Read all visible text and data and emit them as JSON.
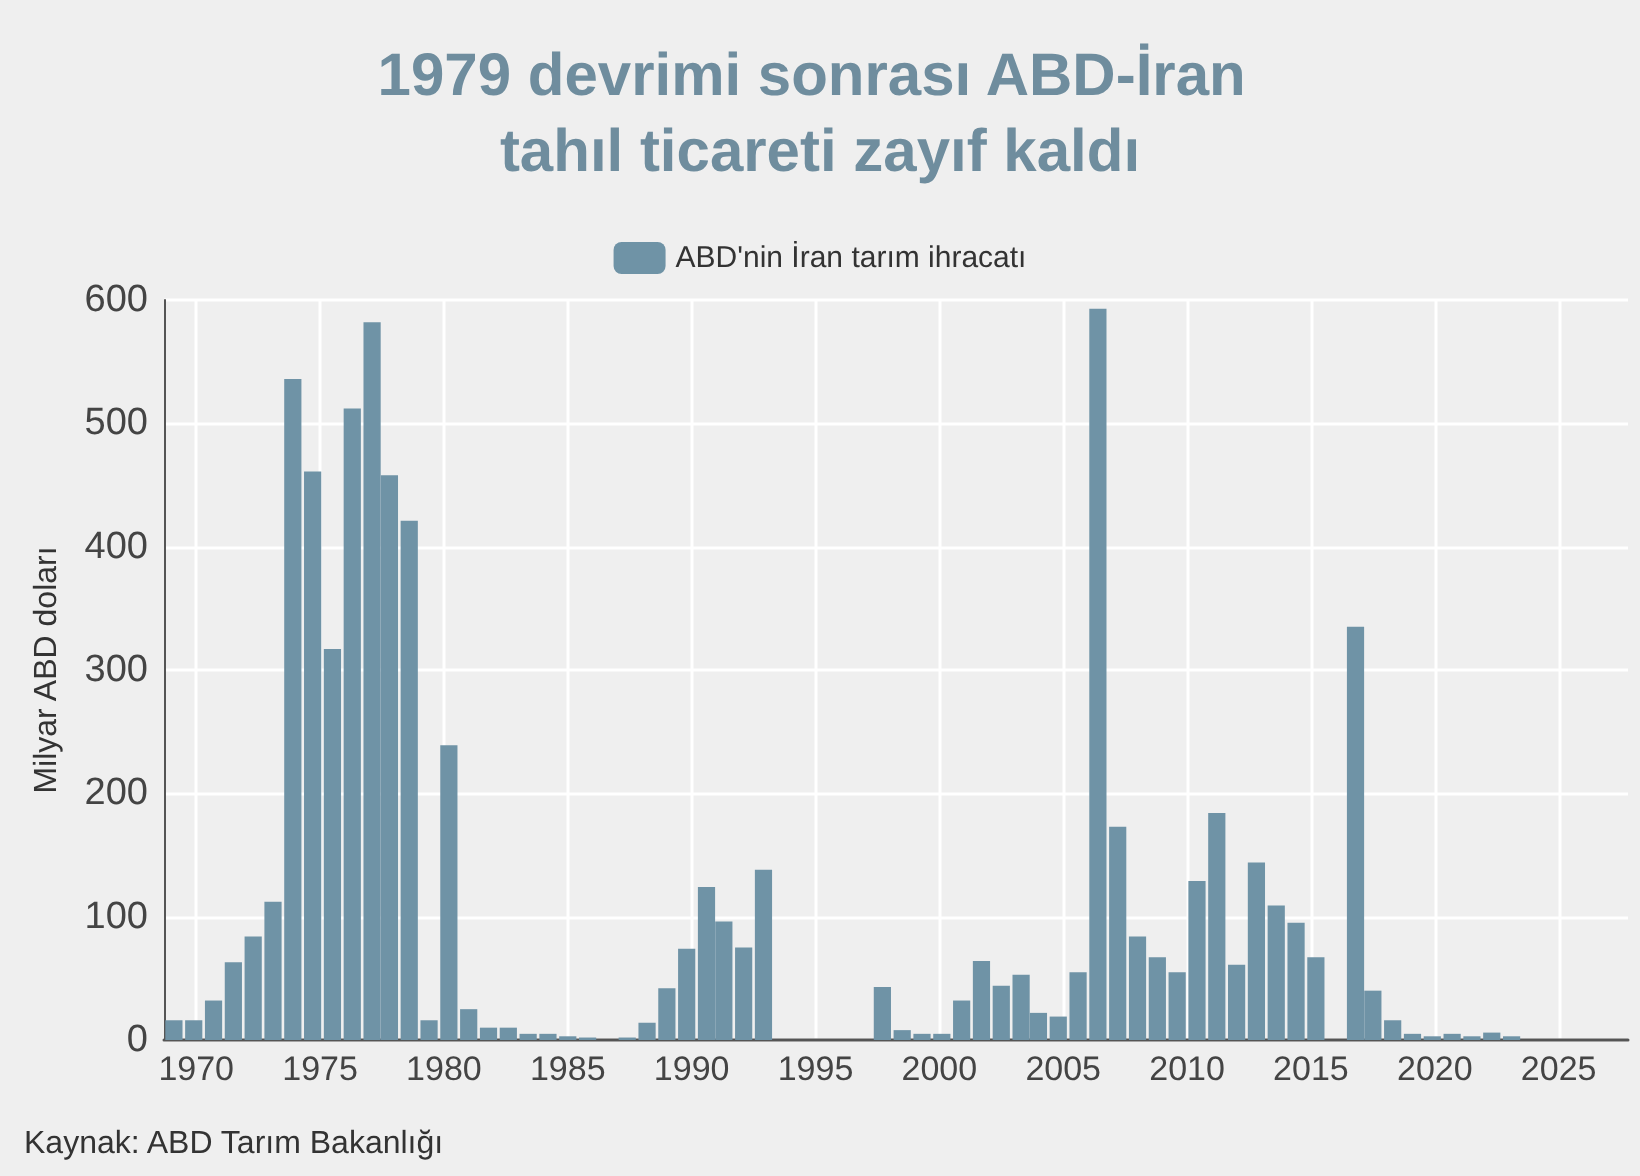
{
  "chart_data": {
    "type": "bar",
    "title": "1979 devrimi sonrası ABD-İran tahıl ticareti zayıf kaldı",
    "ylabel": "Milyar ABD doları",
    "annotations": [
      "Kaynak: ABD Tarım Bakanlığı"
    ],
    "x": [
      1969.1,
      1969.9,
      1970.7,
      1971.5,
      1972.3,
      1973.1,
      1973.9,
      1974.7,
      1975.5,
      1976.3,
      1977.1,
      1977.8,
      1978.6,
      1979.4,
      1980.2,
      1981.0,
      1981.8,
      1982.6,
      1983.4,
      1984.2,
      1985.0,
      1985.8,
      1987.4,
      1988.2,
      1989.0,
      1989.8,
      1990.6,
      1991.3,
      1992.1,
      1992.9,
      1997.7,
      1998.5,
      1999.3,
      2000.1,
      2000.9,
      2001.7,
      2002.5,
      2003.3,
      2004.0,
      2004.8,
      2005.6,
      2006.4,
      2007.2,
      2008.0,
      2008.8,
      2009.6,
      2010.4,
      2011.2,
      2012.0,
      2012.8,
      2013.6,
      2014.4,
      2015.2,
      2016.8,
      2017.5,
      2018.3,
      2019.1,
      2019.9,
      2020.7,
      2021.5,
      2022.3,
      2023.1
    ],
    "series": [
      {
        "name": "ABD'nin İran tarım ihracatı",
        "color": "#6f93a6",
        "values": [
          16,
          16,
          32,
          63,
          84,
          112,
          536,
          461,
          317,
          512,
          582,
          458,
          421,
          16,
          239,
          25,
          10,
          10,
          5,
          5,
          3,
          2,
          2,
          14,
          42,
          74,
          124,
          96,
          75,
          138,
          43,
          8,
          5,
          5,
          32,
          64,
          44,
          53,
          22,
          19,
          55,
          593,
          173,
          84,
          67,
          55,
          129,
          184,
          61,
          144,
          109,
          95,
          67,
          335,
          40,
          16,
          5,
          3,
          5,
          3,
          6,
          3
        ]
      }
    ],
    "xlim": [
      1968.7,
      2027.8
    ],
    "xticks": [
      1970,
      1975,
      1980,
      1985,
      1990,
      1995,
      2000,
      2005,
      2010,
      2015,
      2020,
      2025
    ],
    "ylim": [
      0,
      600
    ],
    "yticks": [
      0,
      100,
      200,
      300,
      400,
      500,
      600
    ],
    "grid": true,
    "legend": "top"
  }
}
